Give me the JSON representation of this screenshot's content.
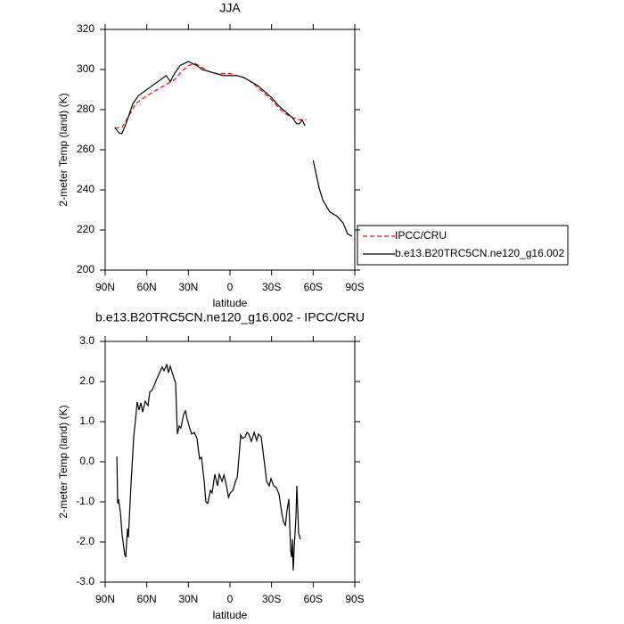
{
  "chart_data": [
    {
      "type": "line",
      "title": "JJA",
      "xlabel": "latitude",
      "ylabel": "2-meter Temp (land) (K)",
      "xlim": [
        90,
        -90
      ],
      "ylim": [
        200,
        320
      ],
      "xticks": [
        {
          "value": 90,
          "label": "90N"
        },
        {
          "value": 60,
          "label": "60N"
        },
        {
          "value": 30,
          "label": "30N"
        },
        0,
        {
          "value": -30,
          "label": "30S"
        },
        {
          "value": -60,
          "label": "60S"
        },
        {
          "value": -90,
          "label": "90S"
        }
      ],
      "yticks": [
        200,
        220,
        240,
        260,
        280,
        300,
        320
      ],
      "legend": "right",
      "series": [
        {
          "name": "IPCC/CRU",
          "color": "#ff0000",
          "line_style": "dashed",
          "x": [
            83,
            78,
            72,
            68,
            60,
            50,
            45,
            40,
            35,
            30,
            25,
            20,
            15,
            10,
            5,
            0,
            -5,
            -10,
            -15,
            -20,
            -30,
            -35,
            -40,
            -45,
            -50,
            -55
          ],
          "values": [
            271,
            271,
            278,
            283,
            287,
            291,
            293,
            295,
            299,
            302,
            303,
            301,
            299,
            298,
            298,
            298,
            297,
            296,
            294,
            291,
            285,
            281,
            278,
            276,
            275,
            275
          ]
        },
        {
          "name": "b.e13.B20TRC5CN.ne120_g16.002",
          "color": "#000000",
          "line_style": "solid",
          "x": [
            83,
            80,
            78,
            75,
            72,
            70,
            66,
            62,
            58,
            54,
            50,
            46,
            43,
            40,
            36,
            33,
            30,
            27,
            24,
            20,
            15,
            10,
            5,
            0,
            -5,
            -10,
            -15,
            -20,
            -25,
            -30,
            -35,
            -40,
            -45,
            -48,
            -50,
            -52,
            -54,
            -57,
            -60,
            -64.3,
            -66.9,
            -72,
            -77,
            -81.6,
            -84.8,
            -88
          ],
          "values": [
            271,
            268.4,
            268,
            273,
            279,
            283,
            287,
            289,
            291,
            293,
            295,
            297,
            294,
            298,
            302,
            303,
            304,
            303,
            302,
            300,
            299,
            298,
            297,
            297,
            297,
            296,
            294,
            292,
            289,
            286,
            282,
            279,
            276,
            273,
            273,
            275,
            272,
            null,
            254.7,
            241,
            235,
            229,
            227,
            223.5,
            218,
            217
          ]
        }
      ]
    },
    {
      "type": "line",
      "title": "b.e13.B20TRC5CN.ne120_g16.002 - IPCC/CRU",
      "xlabel": "latitude",
      "ylabel": "2-meter Temp (land) (K)",
      "xlim": [
        90,
        -90
      ],
      "ylim": [
        -3,
        3
      ],
      "xticks": [
        {
          "value": 90,
          "label": "90N"
        },
        {
          "value": 60,
          "label": "60N"
        },
        {
          "value": 30,
          "label": "30N"
        },
        0,
        {
          "value": -30,
          "label": "30S"
        },
        {
          "value": -60,
          "label": "60S"
        },
        {
          "value": -90,
          "label": "90S"
        }
      ],
      "yticks": [
        {
          "value": -3,
          "label": "-3.0"
        },
        {
          "value": -2,
          "label": "-2.0"
        },
        {
          "value": -1,
          "label": "-1.0"
        },
        {
          "value": 0,
          "label": "0.0"
        },
        {
          "value": 1,
          "label": "1.0"
        },
        {
          "value": 2,
          "label": "2.0"
        },
        {
          "value": 3,
          "label": "3.0"
        }
      ],
      "series": [
        {
          "color": "#000000",
          "line_style": "solid",
          "x": [
            81.6,
            81,
            80.4,
            79,
            77.8,
            75.9,
            75.2,
            73.9,
            73.3,
            71.4,
            69.4,
            68.1,
            66.9,
            65.6,
            64.3,
            63,
            61.1,
            59.1,
            57.9,
            55.9,
            54,
            52.7,
            50.8,
            48.9,
            47.6,
            45.6,
            44.4,
            43.1,
            41.1,
            39.2,
            37.9,
            36.6,
            35.4,
            33.4,
            32.1,
            30.9,
            28.9,
            27.6,
            25.7,
            23.8,
            21.9,
            20.6,
            18.6,
            17.4,
            16.1,
            14.1,
            12.9,
            10.9,
            9,
            7.7,
            5.7,
            4.4,
            2.5,
            1.1,
            -0.1,
            -2.1,
            -4,
            -5.3,
            -6.6,
            -7.7,
            -9,
            -10.9,
            -12.2,
            -13.5,
            -15.4,
            -17.4,
            -19.3,
            -20.6,
            -22.5,
            -24.5,
            -26.4,
            -28.3,
            -29.6,
            -31.5,
            -33.4,
            -35.4,
            -37.3,
            -38.6,
            -39.9,
            -41.1,
            -42.4,
            -43.7,
            -44.4,
            -45,
            -45.6,
            -46.3,
            -47.6,
            -48.2,
            -49.5,
            -50.8
          ],
          "values": [
            0.13,
            -1.04,
            -0.93,
            -1.27,
            -1.82,
            -2.31,
            -2.38,
            -1.67,
            -1.89,
            -0.6,
            0.62,
            1.07,
            1.49,
            1.29,
            1.47,
            1.24,
            1.51,
            1.4,
            1.73,
            1.8,
            1.96,
            2.07,
            2.22,
            2.36,
            2.27,
            2.42,
            2.22,
            2.38,
            2.16,
            1.96,
            0.69,
            0.89,
            0.84,
            1.18,
            1.27,
            1.07,
            0.82,
            0.69,
            0.73,
            0.58,
            0.07,
            0.11,
            -0.49,
            -1.0,
            -1.04,
            -0.71,
            -0.78,
            -0.31,
            -0.6,
            -0.31,
            -0.49,
            -0.33,
            -0.6,
            -0.89,
            -0.78,
            -0.71,
            -0.49,
            -0.38,
            0.18,
            0.67,
            0.58,
            0.62,
            0.73,
            0.69,
            0.51,
            0.73,
            0.53,
            0.69,
            0.62,
            0.07,
            -0.49,
            -0.6,
            -0.42,
            -0.6,
            -0.64,
            -0.82,
            -1.27,
            -1.49,
            -1.6,
            -1.22,
            -0.93,
            -2.2,
            -2.38,
            -1.93,
            -2.71,
            -2.16,
            -1.38,
            -0.6,
            -1.78,
            -1.93
          ]
        }
      ]
    }
  ]
}
